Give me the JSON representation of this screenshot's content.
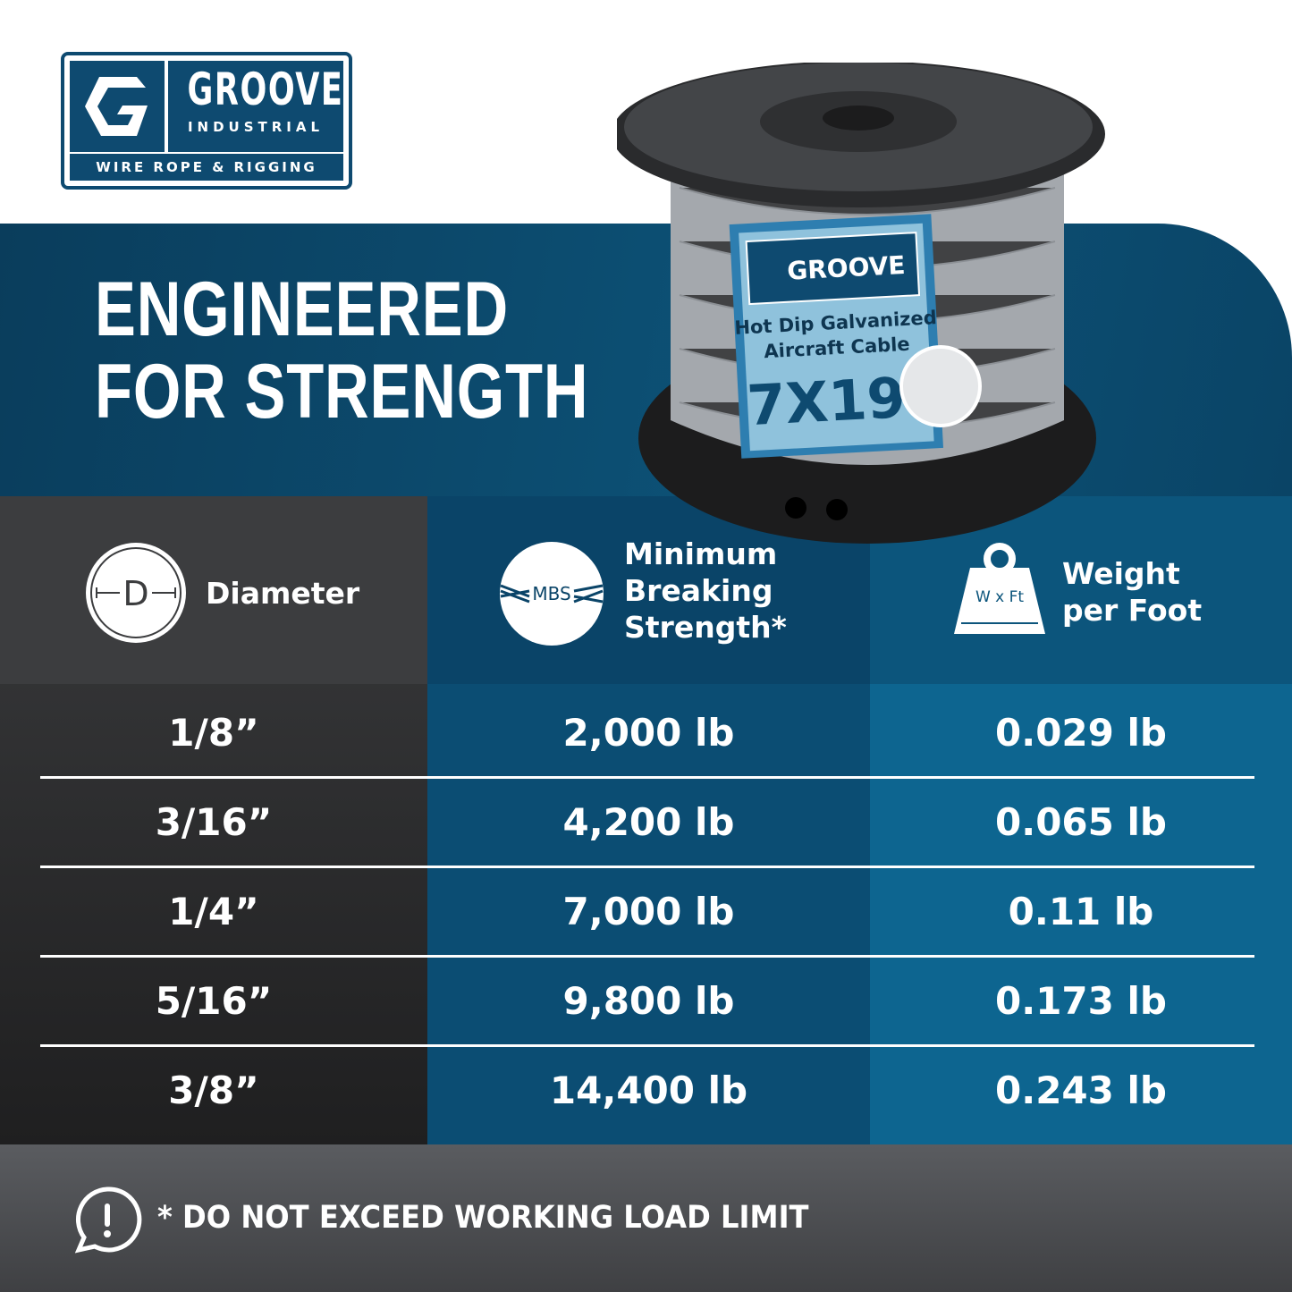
{
  "logo": {
    "name": "GROOVE",
    "sub": "INDUSTRIAL",
    "tagline": "WIRE ROPE & RIGGING"
  },
  "headline": {
    "line1": "ENGINEERED",
    "line2": "FOR STRENGTH"
  },
  "product_label": {
    "brand": "GROOVE",
    "line1": "Hot Dip Galvanized",
    "line2": "Aircraft Cable",
    "construction": "7X19"
  },
  "columns": [
    {
      "icon": "diameter-icon",
      "icon_text": "D",
      "label": "Diameter"
    },
    {
      "icon": "mbs-icon",
      "icon_text": "MBS",
      "label_lines": [
        "Minimum",
        "Breaking",
        "Strength*"
      ]
    },
    {
      "icon": "weight-icon",
      "icon_text": "W x Ft",
      "label_lines": [
        "Weight",
        "per Foot"
      ]
    }
  ],
  "rows": [
    {
      "diameter": "1/8”",
      "mbs": "2,000 lb",
      "weight": "0.029 lb"
    },
    {
      "diameter": "3/16”",
      "mbs": "4,200 lb",
      "weight": "0.065 lb"
    },
    {
      "diameter": "1/4”",
      "mbs": "7,000 lb",
      "weight": "0.11 lb"
    },
    {
      "diameter": "5/16”",
      "mbs": "9,800 lb",
      "weight": "0.173 lb"
    },
    {
      "diameter": "3/8”",
      "mbs": "14,400 lb",
      "weight": "0.243 lb"
    }
  ],
  "footer": {
    "icon": "alert-speech-icon",
    "note": "* DO NOT EXCEED WORKING LOAD LIMIT"
  },
  "colors": {
    "brand_blue": "#0e4a70",
    "dark": "#3a3b3d",
    "mid_blue": "#0b4d73",
    "light_blue": "#0d6590"
  }
}
